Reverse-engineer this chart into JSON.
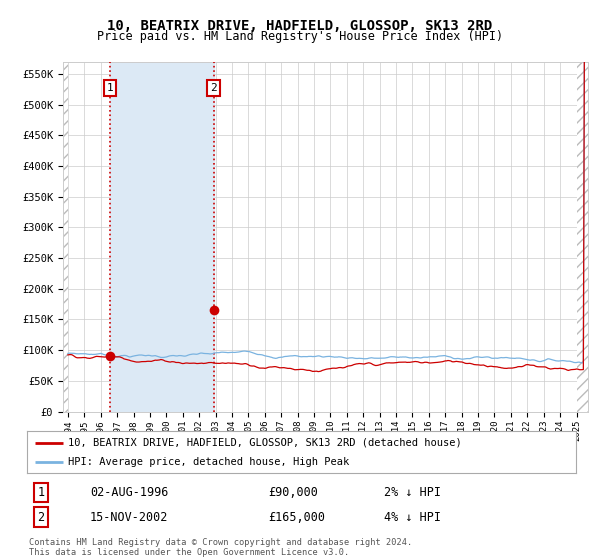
{
  "title": "10, BEATRIX DRIVE, HADFIELD, GLOSSOP, SK13 2RD",
  "subtitle": "Price paid vs. HM Land Registry's House Price Index (HPI)",
  "title_fontsize": 10,
  "subtitle_fontsize": 8.5,
  "ylim": [
    0,
    570000
  ],
  "yticks": [
    0,
    50000,
    100000,
    150000,
    200000,
    250000,
    300000,
    350000,
    400000,
    450000,
    500000,
    550000
  ],
  "ytick_labels": [
    "£0",
    "£50K",
    "£100K",
    "£150K",
    "£200K",
    "£250K",
    "£300K",
    "£350K",
    "£400K",
    "£450K",
    "£500K",
    "£550K"
  ],
  "x_start_year": 1994.0,
  "x_end_year": 2025.5,
  "sale1_year": 1996.583,
  "sale1_price": 90000,
  "sale1_label": "1",
  "sale2_year": 2002.875,
  "sale2_price": 165000,
  "sale2_label": "2",
  "shaded_color": "#dce9f5",
  "vline_color": "#cc0000",
  "hpi_line_color": "#7ab3e0",
  "price_line_color": "#cc0000",
  "marker_color": "#cc0000",
  "background_color": "#ffffff",
  "grid_color": "#cccccc",
  "legend_entry1": "10, BEATRIX DRIVE, HADFIELD, GLOSSOP, SK13 2RD (detached house)",
  "legend_entry2": "HPI: Average price, detached house, High Peak",
  "annotation1_date": "02-AUG-1996",
  "annotation1_price": "£90,000",
  "annotation1_hpi": "2% ↓ HPI",
  "annotation2_date": "15-NOV-2002",
  "annotation2_price": "£165,000",
  "annotation2_hpi": "4% ↓ HPI",
  "footnote": "Contains HM Land Registry data © Crown copyright and database right 2024.\nThis data is licensed under the Open Government Licence v3.0."
}
